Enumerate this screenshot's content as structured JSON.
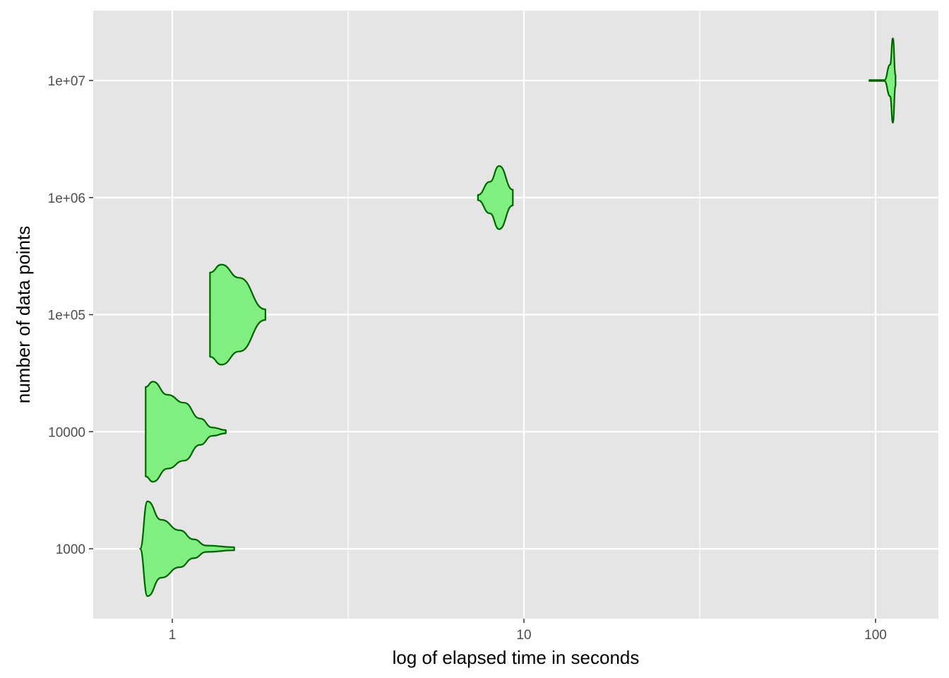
{
  "chart_data": {
    "type": "violin",
    "xlabel": "log of elapsed time in seconds",
    "ylabel": "number of data points",
    "x_scale": "log10",
    "y_scale": "log10",
    "xlim": [
      0.65,
      120
    ],
    "ylim": [
      200,
      40000000
    ],
    "x_ticks": [
      {
        "value": 1,
        "label": "1"
      },
      {
        "value": 10,
        "label": "10"
      },
      {
        "value": 100,
        "label": "100"
      }
    ],
    "y_ticks": [
      {
        "value": 1000,
        "label": "1000"
      },
      {
        "value": 10000,
        "label": "10000"
      },
      {
        "value": 100000,
        "label": "1e+05"
      },
      {
        "value": 1000000,
        "label": "1e+06"
      },
      {
        "value": 10000000,
        "label": "1e+07"
      }
    ],
    "grid": true,
    "legend": "none",
    "colors": {
      "panel_background": "#e5e5e5",
      "grid_line": "#ffffff",
      "violin_fill": "#80ee80",
      "violin_outline": "#006400"
    },
    "series": [
      {
        "n": 1000,
        "time_min": 0.81,
        "time_max": 1.5,
        "profile": [
          [
            0.81,
            0.0
          ],
          [
            0.85,
            0.9
          ],
          [
            0.93,
            0.55
          ],
          [
            1.05,
            0.35
          ],
          [
            1.15,
            0.18
          ],
          [
            1.25,
            0.06
          ],
          [
            1.5,
            0.03
          ]
        ],
        "y_span_decades": 0.45
      },
      {
        "n": 10000,
        "time_min": 0.84,
        "time_max": 1.42,
        "profile": [
          [
            0.84,
            0.85
          ],
          [
            0.88,
            0.95
          ],
          [
            0.97,
            0.7
          ],
          [
            1.08,
            0.55
          ],
          [
            1.2,
            0.25
          ],
          [
            1.3,
            0.08
          ],
          [
            1.42,
            0.03
          ]
        ],
        "y_span_decades": 0.45
      },
      {
        "n": 100000,
        "time_min": 1.28,
        "time_max": 1.84,
        "profile": [
          [
            1.28,
            0.8
          ],
          [
            1.38,
            0.95
          ],
          [
            1.55,
            0.7
          ],
          [
            1.84,
            0.1
          ]
        ],
        "y_span_decades": 0.45
      },
      {
        "n": 1000000,
        "time_min": 7.4,
        "time_max": 9.3,
        "profile": [
          [
            7.4,
            0.05
          ],
          [
            8.0,
            0.3
          ],
          [
            8.5,
            0.6
          ],
          [
            9.3,
            0.15
          ]
        ],
        "y_span_decades": 0.45
      },
      {
        "n": 10000000,
        "time_min": 96,
        "time_max": 114,
        "profile": [
          [
            96,
            0.01
          ],
          [
            106,
            0.01
          ],
          [
            110,
            0.3
          ],
          [
            112,
            0.8
          ],
          [
            114,
            0.1
          ]
        ],
        "y_span_decades": 0.45
      }
    ]
  }
}
